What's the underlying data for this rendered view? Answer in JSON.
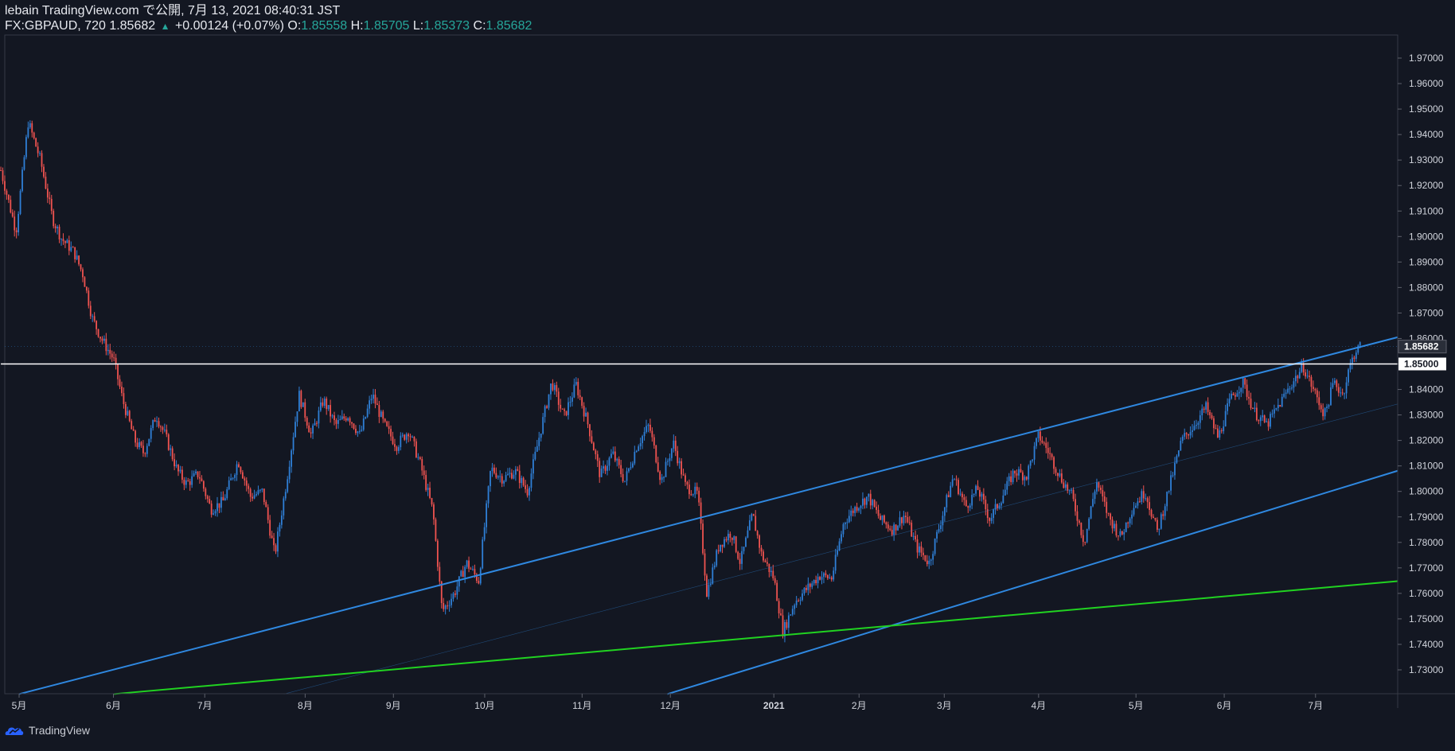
{
  "header": {
    "publisher_line": "lebain TradingView.com で公開, 7月 13, 2021 08:40:31 JST",
    "symbol": "FX:GBPAUD, 720",
    "last": "1.85682",
    "change": "+0.00124 (+0.07%)",
    "o_label": "O:",
    "o_value": "1.85558",
    "h_label": "H:",
    "h_value": "1.85705",
    "l_label": "L:",
    "l_value": "1.85373",
    "c_label": "C:",
    "c_value": "1.85682"
  },
  "footer": {
    "brand": "TradingView"
  },
  "colors": {
    "background": "#131722",
    "up_candle": "#2f7fd6",
    "down_candle": "#ef5350",
    "channel_line": "#2f88e0",
    "support_line": "#21d321",
    "horizontal_level": "#ffffff",
    "axis_text": "#d1d4dc"
  },
  "chart_data": {
    "type": "candlestick",
    "symbol": "FX:GBPAUD",
    "interval": "720",
    "y_axis": {
      "ylim": [
        1.722,
        1.982
      ],
      "ticks": [
        "1.73000",
        "1.74000",
        "1.75000",
        "1.76000",
        "1.77000",
        "1.78000",
        "1.79000",
        "1.80000",
        "1.81000",
        "1.82000",
        "1.83000",
        "1.84000",
        "1.85000",
        "1.86000",
        "1.87000",
        "1.88000",
        "1.89000",
        "1.90000",
        "1.91000",
        "1.92000",
        "1.93000",
        "1.94000",
        "1.95000",
        "1.96000",
        "1.97000"
      ]
    },
    "x_axis": {
      "start": "2020-05-01",
      "end": "2021-07-28",
      "labels": [
        {
          "date": "2020-05-01",
          "label": "5月"
        },
        {
          "date": "2020-06-01",
          "label": "6月"
        },
        {
          "date": "2020-07-01",
          "label": "7月"
        },
        {
          "date": "2020-08-03",
          "label": "8月"
        },
        {
          "date": "2020-09-01",
          "label": "9月"
        },
        {
          "date": "2020-10-01",
          "label": "10月"
        },
        {
          "date": "2020-11-02",
          "label": "11月"
        },
        {
          "date": "2020-12-01",
          "label": "12月"
        },
        {
          "date": "2021-01-04",
          "label": "2021"
        },
        {
          "date": "2021-02-01",
          "label": "2月"
        },
        {
          "date": "2021-03-01",
          "label": "3月"
        },
        {
          "date": "2021-04-01",
          "label": "4月"
        },
        {
          "date": "2021-05-03",
          "label": "5月"
        },
        {
          "date": "2021-06-01",
          "label": "6月"
        },
        {
          "date": "2021-07-01",
          "label": "7月"
        }
      ]
    },
    "price_path": [
      [
        "2020-04-25",
        1.926
      ],
      [
        "2020-04-30",
        1.902
      ],
      [
        "2020-05-04",
        1.945
      ],
      [
        "2020-05-08",
        1.93
      ],
      [
        "2020-05-12",
        1.907
      ],
      [
        "2020-05-15",
        1.899
      ],
      [
        "2020-05-19",
        1.894
      ],
      [
        "2020-05-22",
        1.885
      ],
      [
        "2020-05-25",
        1.868
      ],
      [
        "2020-05-28",
        1.86
      ],
      [
        "2020-06-01",
        1.852
      ],
      [
        "2020-06-04",
        1.836
      ],
      [
        "2020-06-08",
        1.82
      ],
      [
        "2020-06-11",
        1.815
      ],
      [
        "2020-06-15",
        1.83
      ],
      [
        "2020-06-18",
        1.822
      ],
      [
        "2020-06-22",
        1.808
      ],
      [
        "2020-06-25",
        1.803
      ],
      [
        "2020-06-29",
        1.807
      ],
      [
        "2020-07-03",
        1.793
      ],
      [
        "2020-07-07",
        1.796
      ],
      [
        "2020-07-12",
        1.812
      ],
      [
        "2020-07-16",
        1.798
      ],
      [
        "2020-07-20",
        1.8
      ],
      [
        "2020-07-24",
        1.775
      ],
      [
        "2020-07-28",
        1.805
      ],
      [
        "2020-08-01",
        1.838
      ],
      [
        "2020-08-05",
        1.822
      ],
      [
        "2020-08-09",
        1.836
      ],
      [
        "2020-08-13",
        1.826
      ],
      [
        "2020-08-17",
        1.83
      ],
      [
        "2020-08-21",
        1.822
      ],
      [
        "2020-08-25",
        1.838
      ],
      [
        "2020-08-29",
        1.826
      ],
      [
        "2020-09-02",
        1.818
      ],
      [
        "2020-09-06",
        1.824
      ],
      [
        "2020-09-10",
        1.81
      ],
      [
        "2020-09-14",
        1.792
      ],
      [
        "2020-09-17",
        1.753
      ],
      [
        "2020-09-21",
        1.76
      ],
      [
        "2020-09-25",
        1.772
      ],
      [
        "2020-09-29",
        1.765
      ],
      [
        "2020-10-03",
        1.809
      ],
      [
        "2020-10-07",
        1.805
      ],
      [
        "2020-10-11",
        1.808
      ],
      [
        "2020-10-15",
        1.8
      ],
      [
        "2020-10-19",
        1.822
      ],
      [
        "2020-10-23",
        1.843
      ],
      [
        "2020-10-27",
        1.829
      ],
      [
        "2020-10-31",
        1.842
      ],
      [
        "2020-11-04",
        1.826
      ],
      [
        "2020-11-08",
        1.806
      ],
      [
        "2020-11-12",
        1.815
      ],
      [
        "2020-11-16",
        1.804
      ],
      [
        "2020-11-20",
        1.818
      ],
      [
        "2020-11-24",
        1.826
      ],
      [
        "2020-11-28",
        1.804
      ],
      [
        "2020-12-02",
        1.819
      ],
      [
        "2020-12-06",
        1.802
      ],
      [
        "2020-12-10",
        1.799
      ],
      [
        "2020-12-13",
        1.76
      ],
      [
        "2020-12-17",
        1.779
      ],
      [
        "2020-12-21",
        1.784
      ],
      [
        "2020-12-24",
        1.772
      ],
      [
        "2020-12-28",
        1.791
      ],
      [
        "2020-12-31",
        1.775
      ],
      [
        "2021-01-04",
        1.766
      ],
      [
        "2021-01-07",
        1.745
      ],
      [
        "2021-01-11",
        1.757
      ],
      [
        "2021-01-15",
        1.762
      ],
      [
        "2021-01-19",
        1.767
      ],
      [
        "2021-01-23",
        1.766
      ],
      [
        "2021-01-27",
        1.788
      ],
      [
        "2021-01-31",
        1.794
      ],
      [
        "2021-02-04",
        1.798
      ],
      [
        "2021-02-08",
        1.789
      ],
      [
        "2021-02-12",
        1.785
      ],
      [
        "2021-02-16",
        1.791
      ],
      [
        "2021-02-20",
        1.778
      ],
      [
        "2021-02-24",
        1.772
      ],
      [
        "2021-02-28",
        1.789
      ],
      [
        "2021-03-04",
        1.806
      ],
      [
        "2021-03-08",
        1.794
      ],
      [
        "2021-03-12",
        1.801
      ],
      [
        "2021-03-16",
        1.789
      ],
      [
        "2021-03-20",
        1.798
      ],
      [
        "2021-03-24",
        1.808
      ],
      [
        "2021-03-28",
        1.806
      ],
      [
        "2021-04-01",
        1.822
      ],
      [
        "2021-04-04",
        1.816
      ],
      [
        "2021-04-08",
        1.806
      ],
      [
        "2021-04-12",
        1.798
      ],
      [
        "2021-04-16",
        1.78
      ],
      [
        "2021-04-20",
        1.804
      ],
      [
        "2021-04-24",
        1.79
      ],
      [
        "2021-04-28",
        1.782
      ],
      [
        "2021-05-02",
        1.794
      ],
      [
        "2021-05-06",
        1.8
      ],
      [
        "2021-05-10",
        1.784
      ],
      [
        "2021-05-14",
        1.802
      ],
      [
        "2021-05-18",
        1.82
      ],
      [
        "2021-05-22",
        1.826
      ],
      [
        "2021-05-26",
        1.833
      ],
      [
        "2021-05-30",
        1.821
      ],
      [
        "2021-06-03",
        1.836
      ],
      [
        "2021-06-07",
        1.843
      ],
      [
        "2021-06-11",
        1.831
      ],
      [
        "2021-06-15",
        1.826
      ],
      [
        "2021-06-19",
        1.834
      ],
      [
        "2021-06-23",
        1.842
      ],
      [
        "2021-06-27",
        1.849
      ],
      [
        "2021-07-01",
        1.838
      ],
      [
        "2021-07-04",
        1.83
      ],
      [
        "2021-07-07",
        1.843
      ],
      [
        "2021-07-10",
        1.838
      ],
      [
        "2021-07-12",
        1.848
      ],
      [
        "2021-07-14",
        1.855
      ],
      [
        "2021-07-16",
        1.857
      ]
    ],
    "price_labels": [
      {
        "value": 1.85682,
        "label": "1.85682",
        "style": "last"
      },
      {
        "value": 1.85,
        "label": "1.85000",
        "style": "level"
      }
    ],
    "drawings": [
      {
        "kind": "channel_upper",
        "color": "channel_line",
        "from": [
          "2020-05-01",
          1.7205
        ],
        "to": [
          "2021-07-28",
          1.8605
        ]
      },
      {
        "kind": "channel_lower",
        "color": "channel_line",
        "from": [
          "2020-11-30",
          1.7205
        ],
        "to": [
          "2021-07-28",
          1.8081
        ]
      },
      {
        "kind": "channel_mid",
        "color": "channel_line",
        "from": [
          "2020-07-27",
          1.7205
        ],
        "to": [
          "2021-07-28",
          1.8343
        ]
      },
      {
        "kind": "support",
        "color": "support_line",
        "from": [
          "2020-06-01",
          1.7205
        ],
        "to": [
          "2021-07-28",
          1.7648
        ]
      },
      {
        "kind": "horizontal",
        "color": "horizontal_level",
        "from": [
          "2020-04-25",
          1.85
        ],
        "to": [
          "2021-07-28",
          1.85
        ]
      }
    ]
  }
}
